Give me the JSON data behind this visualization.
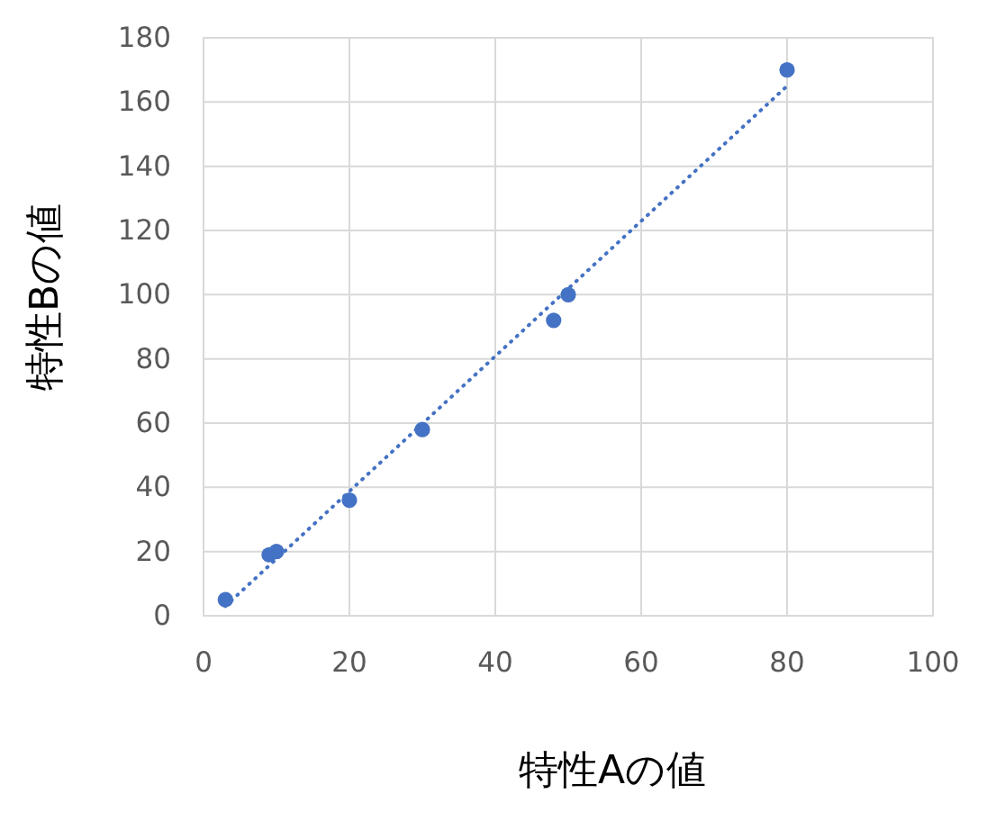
{
  "chart_data": {
    "type": "scatter",
    "xlabel": "特性Aの値",
    "ylabel": "特性Bの値",
    "xlim": [
      0,
      100
    ],
    "xticks": [
      0,
      20,
      40,
      60,
      80,
      100
    ],
    "ylim": [
      0,
      180
    ],
    "yticks": [
      0,
      20,
      40,
      60,
      80,
      100,
      120,
      140,
      160,
      180
    ],
    "grid": true,
    "series": [
      {
        "type": "scatter",
        "color": "#4472c4",
        "marker": "circle",
        "x": [
          3,
          9,
          10,
          20,
          30,
          48,
          50,
          80
        ],
        "values": [
          5,
          19,
          20,
          36,
          58,
          92,
          100,
          170
        ]
      },
      {
        "type": "line",
        "color": "#4472c4",
        "marker": "none",
        "line_style": "dotted",
        "x": [
          3,
          80
        ],
        "values": [
          3,
          165
        ]
      }
    ]
  }
}
